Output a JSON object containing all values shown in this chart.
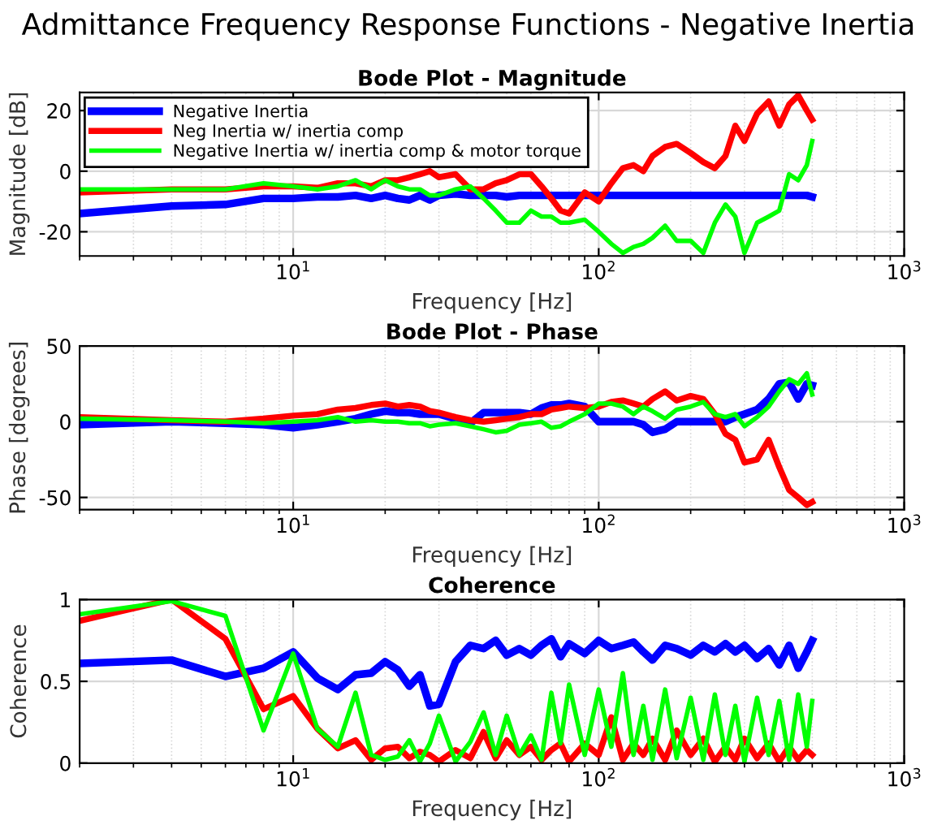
{
  "chart_data": [
    {
      "type": "line",
      "title": "Admittance Frequency Response Functions - Negative Inertia",
      "subtitle": "Bode Plot - Magnitude",
      "xlabel": "Frequency [Hz]",
      "ylabel": "Magnitude [dB]",
      "log": "x",
      "grid": true,
      "legend": "top left",
      "line_style": "solid",
      "xlim": [
        2,
        1000
      ],
      "ylim": [
        -28,
        26
      ],
      "xticks": [
        {
          "value": 10,
          "label": "10$^{1}$"
        },
        {
          "value": 100,
          "label": "10$^{2}$"
        },
        {
          "value": 1000,
          "label": "10$^{3}$"
        }
      ],
      "yticks": [
        -20,
        0,
        20
      ],
      "x": [
        2,
        4,
        6,
        8,
        10,
        12,
        14,
        16,
        18,
        20,
        22,
        24,
        26,
        28,
        30,
        34,
        38,
        42,
        46,
        50,
        55,
        60,
        65,
        70,
        75,
        80,
        90,
        100,
        110,
        120,
        130,
        140,
        150,
        165,
        180,
        200,
        220,
        240,
        260,
        280,
        300,
        330,
        360,
        390,
        420,
        450,
        480,
        500
      ],
      "series": [
        {
          "name": "Negative Inertia",
          "color": "#0000ff",
          "values": [
            -14,
            -11.5,
            -11,
            -9,
            -9,
            -8.5,
            -8.5,
            -8,
            -9,
            -8,
            -9,
            -9.5,
            -8,
            -9.5,
            -8,
            -7.5,
            -8,
            -8,
            -8,
            -8.5,
            -8,
            -8,
            -8,
            -8,
            -8,
            -8,
            -8,
            -8,
            -8,
            -8,
            -8,
            -8,
            -8,
            -8,
            -8,
            -8,
            -8,
            -8,
            -8,
            -8,
            -8,
            -8,
            -8,
            -8,
            -8,
            -8,
            -8,
            -8.5
          ]
        },
        {
          "name": "Neg Inertia w/ inertia comp",
          "color": "#ff0000",
          "values": [
            -7,
            -6,
            -6,
            -5,
            -5,
            -5.5,
            -4,
            -4,
            -5,
            -3,
            -3,
            -2,
            -1,
            0,
            -2,
            -1,
            -6,
            -6,
            -4,
            -3,
            -1,
            -1,
            -5,
            -9,
            -13,
            -14,
            -7,
            -10,
            -4,
            1,
            2,
            0,
            5,
            8,
            9,
            6,
            3,
            1,
            5,
            15,
            10,
            19,
            23,
            15,
            22,
            25,
            20,
            17
          ]
        },
        {
          "name": "Negative Inertia w/ inertia comp & motor torque",
          "color": "#00ff00",
          "values": [
            -6,
            -6,
            -6,
            -4,
            -5,
            -6,
            -5,
            -3,
            -6,
            -3,
            -5,
            -6,
            -6,
            -8,
            -8,
            -6,
            -5,
            -9,
            -13,
            -17,
            -17,
            -13,
            -15,
            -15,
            -17,
            -17,
            -16,
            -20,
            -24,
            -27,
            -25,
            -24,
            -22,
            -18,
            -23,
            -23,
            -27,
            -17,
            -11,
            -15,
            -27,
            -17,
            -15,
            -13,
            -1,
            -3,
            2,
            10
          ]
        }
      ]
    },
    {
      "type": "line",
      "title": "Bode Plot - Phase",
      "xlabel": "Frequency [Hz]",
      "ylabel": "Phase [degrees]",
      "log": "x",
      "grid": true,
      "line_style": "solid",
      "xlim": [
        2,
        1000
      ],
      "ylim": [
        -58,
        50
      ],
      "xticks": [
        {
          "value": 10,
          "label": "10$^{1}$"
        },
        {
          "value": 100,
          "label": "10$^{2}$"
        },
        {
          "value": 1000,
          "label": "10$^{3}$"
        }
      ],
      "yticks": [
        -50,
        0,
        50
      ],
      "x": [
        2,
        4,
        6,
        8,
        10,
        12,
        14,
        16,
        18,
        20,
        22,
        24,
        26,
        28,
        30,
        34,
        38,
        42,
        46,
        50,
        55,
        60,
        65,
        70,
        75,
        80,
        90,
        100,
        110,
        120,
        130,
        140,
        150,
        165,
        180,
        200,
        220,
        240,
        260,
        280,
        300,
        330,
        360,
        390,
        420,
        450,
        480,
        500
      ],
      "series": [
        {
          "color": "#0000ff",
          "values": [
            -2,
            0,
            -1,
            -2,
            -4,
            -2,
            0,
            2,
            5,
            7,
            6,
            6,
            5,
            5,
            5,
            2,
            -1,
            6,
            6,
            6,
            6,
            5,
            9,
            11,
            11,
            12,
            10,
            0,
            0,
            0,
            0,
            -2,
            -7,
            -5,
            0,
            0,
            0,
            0,
            0,
            3,
            5,
            8,
            15,
            25,
            26,
            15,
            25,
            24
          ]
        },
        {
          "color": "#ff0000",
          "values": [
            3,
            1,
            0,
            2,
            4,
            5,
            8,
            9,
            11,
            12,
            10,
            11,
            10,
            7,
            6,
            3,
            1,
            0,
            1,
            2,
            3,
            5,
            5,
            8,
            9,
            10,
            9,
            10,
            13,
            14,
            12,
            10,
            15,
            20,
            14,
            17,
            15,
            5,
            -8,
            -12,
            -27,
            -25,
            -12,
            -30,
            -45,
            -50,
            -55,
            -53
          ]
        },
        {
          "color": "#00ff00",
          "values": [
            2,
            1,
            0,
            -1,
            0,
            1,
            3,
            0,
            1,
            0,
            0,
            -1,
            -1,
            -3,
            -2,
            -1,
            -3,
            -5,
            -7,
            -6,
            -2,
            -1,
            0,
            -4,
            -3,
            0,
            5,
            12,
            12,
            10,
            5,
            10,
            7,
            2,
            8,
            10,
            13,
            5,
            3,
            5,
            -3,
            3,
            10,
            20,
            28,
            25,
            32,
            18
          ]
        }
      ]
    },
    {
      "type": "line",
      "title": "Coherence",
      "xlabel": "Frequency [Hz]",
      "ylabel": "Coherence",
      "log": "x",
      "grid": true,
      "line_style": "solid",
      "xlim": [
        2,
        1000
      ],
      "ylim": [
        0,
        1
      ],
      "xticks": [
        {
          "value": 10,
          "label": "10$^{1}$"
        },
        {
          "value": 100,
          "label": "10$^{2}$"
        },
        {
          "value": 1000,
          "label": "10$^{3}$"
        }
      ],
      "yticks": [
        0,
        0.5,
        1
      ],
      "x": [
        2,
        4,
        6,
        8,
        10,
        12,
        14,
        16,
        18,
        20,
        22,
        24,
        26,
        28,
        30,
        34,
        38,
        42,
        46,
        50,
        55,
        60,
        65,
        70,
        75,
        80,
        90,
        100,
        110,
        120,
        130,
        140,
        150,
        165,
        180,
        200,
        220,
        240,
        260,
        280,
        300,
        330,
        360,
        390,
        420,
        450,
        480,
        500
      ],
      "series": [
        {
          "color": "#0000ff",
          "values": [
            0.61,
            0.63,
            0.53,
            0.58,
            0.68,
            0.52,
            0.45,
            0.54,
            0.55,
            0.62,
            0.57,
            0.47,
            0.54,
            0.35,
            0.36,
            0.62,
            0.72,
            0.7,
            0.75,
            0.66,
            0.7,
            0.66,
            0.72,
            0.76,
            0.65,
            0.73,
            0.67,
            0.75,
            0.7,
            0.72,
            0.74,
            0.68,
            0.63,
            0.72,
            0.7,
            0.66,
            0.72,
            0.68,
            0.73,
            0.68,
            0.72,
            0.64,
            0.7,
            0.6,
            0.72,
            0.58,
            0.68,
            0.75
          ]
        },
        {
          "color": "#ff0000",
          "values": [
            0.87,
            1,
            0.76,
            0.33,
            0.41,
            0.21,
            0.09,
            0.14,
            0.02,
            0.09,
            0.1,
            0.03,
            0.07,
            0.05,
            0.01,
            0.08,
            0.03,
            0.19,
            0.03,
            0.14,
            0.05,
            0.1,
            0.02,
            0.08,
            0.12,
            0.01,
            0.12,
            0.05,
            0.28,
            0.02,
            0.12,
            0.05,
            0.15,
            0.02,
            0.2,
            0.05,
            0.15,
            0.01,
            0.1,
            0.02,
            0.15,
            0.03,
            0.12,
            0.01,
            0.1,
            0.02,
            0.08,
            0.05
          ]
        },
        {
          "color": "#00ff00",
          "values": [
            0.91,
            0.99,
            0.9,
            0.2,
            0.67,
            0.21,
            0.1,
            0.43,
            0.05,
            0.02,
            0.04,
            0.14,
            0.01,
            0.12,
            0.29,
            0.01,
            0.13,
            0.31,
            0.05,
            0.29,
            0.05,
            0.17,
            0.02,
            0.43,
            0.12,
            0.48,
            0.05,
            0.45,
            0.1,
            0.55,
            0.05,
            0.35,
            0.02,
            0.45,
            0.03,
            0.4,
            0.02,
            0.42,
            0.05,
            0.35,
            0.01,
            0.4,
            0.05,
            0.38,
            0.02,
            0.42,
            0.1,
            0.38
          ]
        }
      ]
    }
  ]
}
